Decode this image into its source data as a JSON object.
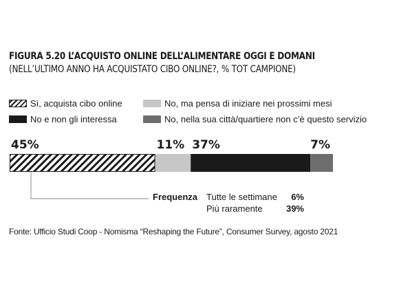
{
  "header": {
    "title": "FIGURA 5.20 L’ACQUISTO ONLINE DELL’ALIMENTARE OGGI E DOMANI",
    "subtitle": "(NELL’ULTIMO ANNO HA ACQUISTATO CIBO ONLINE?, % TOT CAMPIONE)"
  },
  "colors": {
    "hatch": "#1a1a1a",
    "light_gray": "#c6c6c6",
    "black": "#1a1a1a",
    "dark_gray": "#6e6e6e"
  },
  "chart_data": {
    "type": "bar",
    "orientation": "horizontal-stacked",
    "series": [
      {
        "name": "Sì, acquista cibo online",
        "value": 45,
        "label": "45%",
        "fill": "hatch"
      },
      {
        "name": "No, ma pensa di iniziare nei prossimi mesi",
        "value": 11,
        "label": "11%",
        "fill": "light_gray"
      },
      {
        "name": "No e non gli interessa",
        "value": 37,
        "label": "37%",
        "fill": "black"
      },
      {
        "name": "No, nella sua città/quartiere non c’è questo servizio",
        "value": 7,
        "label": "7%",
        "fill": "dark_gray"
      }
    ],
    "legend": [
      "Sì, acquista cibo online",
      "No, ma pensa di iniziare nei prossimi mesi",
      "No e non gli interessa",
      "No, nella sua città/quartiere non c’è questo servizio"
    ],
    "breakdown": {
      "label": "Frequenza",
      "items": [
        {
          "label": "Tutte le settimane",
          "value": "6%"
        },
        {
          "label": "Più raramente",
          "value": "39%"
        }
      ]
    },
    "xlim": [
      0,
      100
    ]
  },
  "source": "Fonte: Ufficio Studi Coop - Nomisma “Reshaping the Future”, Consumer Survey, agosto 2021"
}
